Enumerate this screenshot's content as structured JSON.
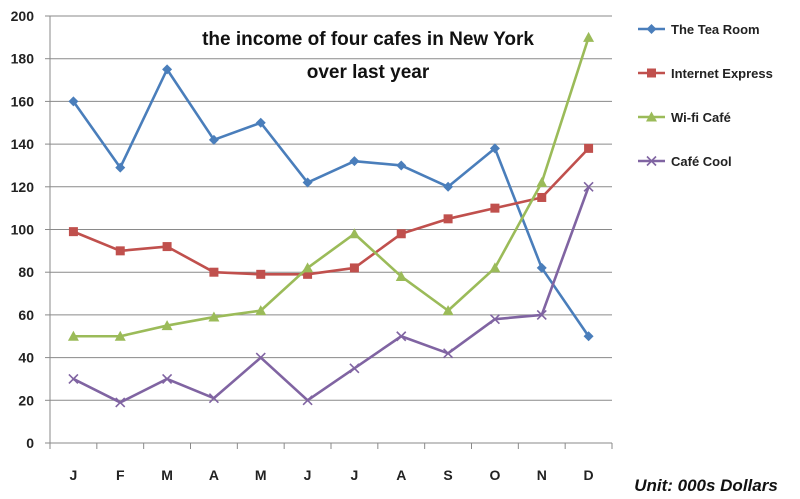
{
  "chart_data": {
    "type": "line",
    "title": "the income of four cafes in New York",
    "subtitle": "over last year",
    "unit_label": "Unit: 000s Dollars",
    "categories": [
      "J",
      "F",
      "M",
      "A",
      "M",
      "J",
      "J",
      "A",
      "S",
      "O",
      "N",
      "D"
    ],
    "ylim": [
      0,
      200
    ],
    "yticks": [
      "0",
      "20",
      "40",
      "60",
      "80",
      "100",
      "120",
      "140",
      "160",
      "180",
      "200"
    ],
    "grid": true,
    "legend_position": "right",
    "series": [
      {
        "name": "The Tea Room",
        "color": "#4a7ebb",
        "marker": "diamond",
        "values": [
          160,
          129,
          175,
          142,
          150,
          122,
          132,
          130,
          120,
          138,
          82,
          50
        ]
      },
      {
        "name": "Internet Express",
        "color": "#c0504d",
        "marker": "square",
        "values": [
          99,
          90,
          92,
          80,
          79,
          79,
          82,
          98,
          105,
          110,
          115,
          138
        ]
      },
      {
        "name": "Wi-fi Café",
        "color": "#9bbb59",
        "marker": "triangle",
        "values": [
          50,
          50,
          55,
          59,
          62,
          82,
          98,
          78,
          62,
          82,
          122,
          190
        ]
      },
      {
        "name": "Café Cool",
        "color": "#8064a2",
        "marker": "x",
        "values": [
          30,
          19,
          30,
          21,
          40,
          20,
          35,
          50,
          42,
          58,
          60,
          120
        ]
      }
    ]
  }
}
